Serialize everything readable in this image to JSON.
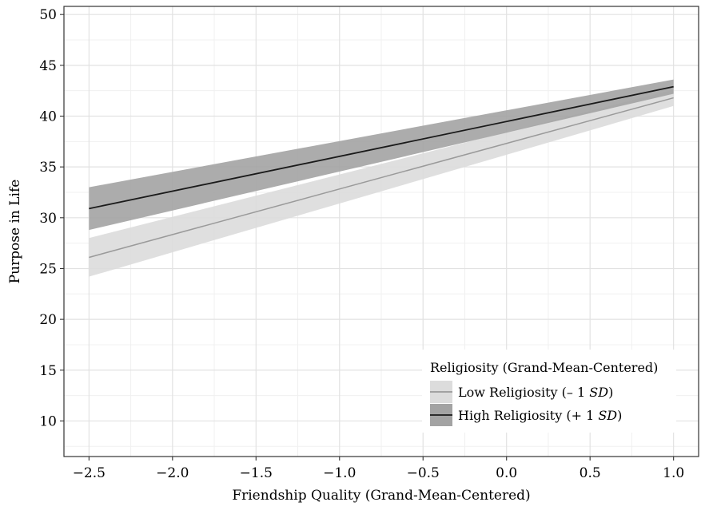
{
  "chart_data": {
    "type": "line",
    "xlabel": "Friendship Quality (Grand-Mean-Centered)",
    "ylabel": "Purpose in Life",
    "xlim": [
      -2.65,
      1.15
    ],
    "ylim": [
      6.5,
      50.8
    ],
    "x_ticks": [
      -2.5,
      -2.0,
      -1.5,
      -1.0,
      -0.5,
      0.0,
      0.5,
      1.0
    ],
    "x_tick_labels": [
      "−2.5",
      "−2.0",
      "−1.5",
      "−1.0",
      "−0.5",
      "0.0",
      "0.5",
      "1.0"
    ],
    "y_ticks": [
      10,
      15,
      20,
      25,
      30,
      35,
      40,
      45,
      50
    ],
    "y_tick_labels": [
      "10",
      "15",
      "20",
      "25",
      "30",
      "35",
      "40",
      "45",
      "50"
    ],
    "grid": true,
    "x": [
      -2.5,
      1.0
    ],
    "series": [
      {
        "name": "Low Religiosity (– 1 SD)",
        "label_text": "Low Religiosity (– 1 ",
        "label_italic": "SD",
        "label_end": ")",
        "values": [
          26.1,
          41.8
        ],
        "ci_lower": [
          24.2,
          41.0
        ],
        "ci_upper": [
          28.0,
          42.6
        ],
        "line_color": "#9a9a9a",
        "band_color": "#dcdcdc"
      },
      {
        "name": "High Religiosity (+ 1 SD)",
        "label_text": "High Religiosity (+ 1 ",
        "label_italic": "SD",
        "label_end": ")",
        "values": [
          30.9,
          42.9
        ],
        "ci_lower": [
          28.8,
          42.2
        ],
        "ci_upper": [
          33.0,
          43.6
        ],
        "line_color": "#1a1a1a",
        "band_color": "#a3a3a3"
      }
    ],
    "legend": {
      "title": "Religiosity (Grand-Mean-Centered)",
      "position": "bottom-right"
    }
  }
}
